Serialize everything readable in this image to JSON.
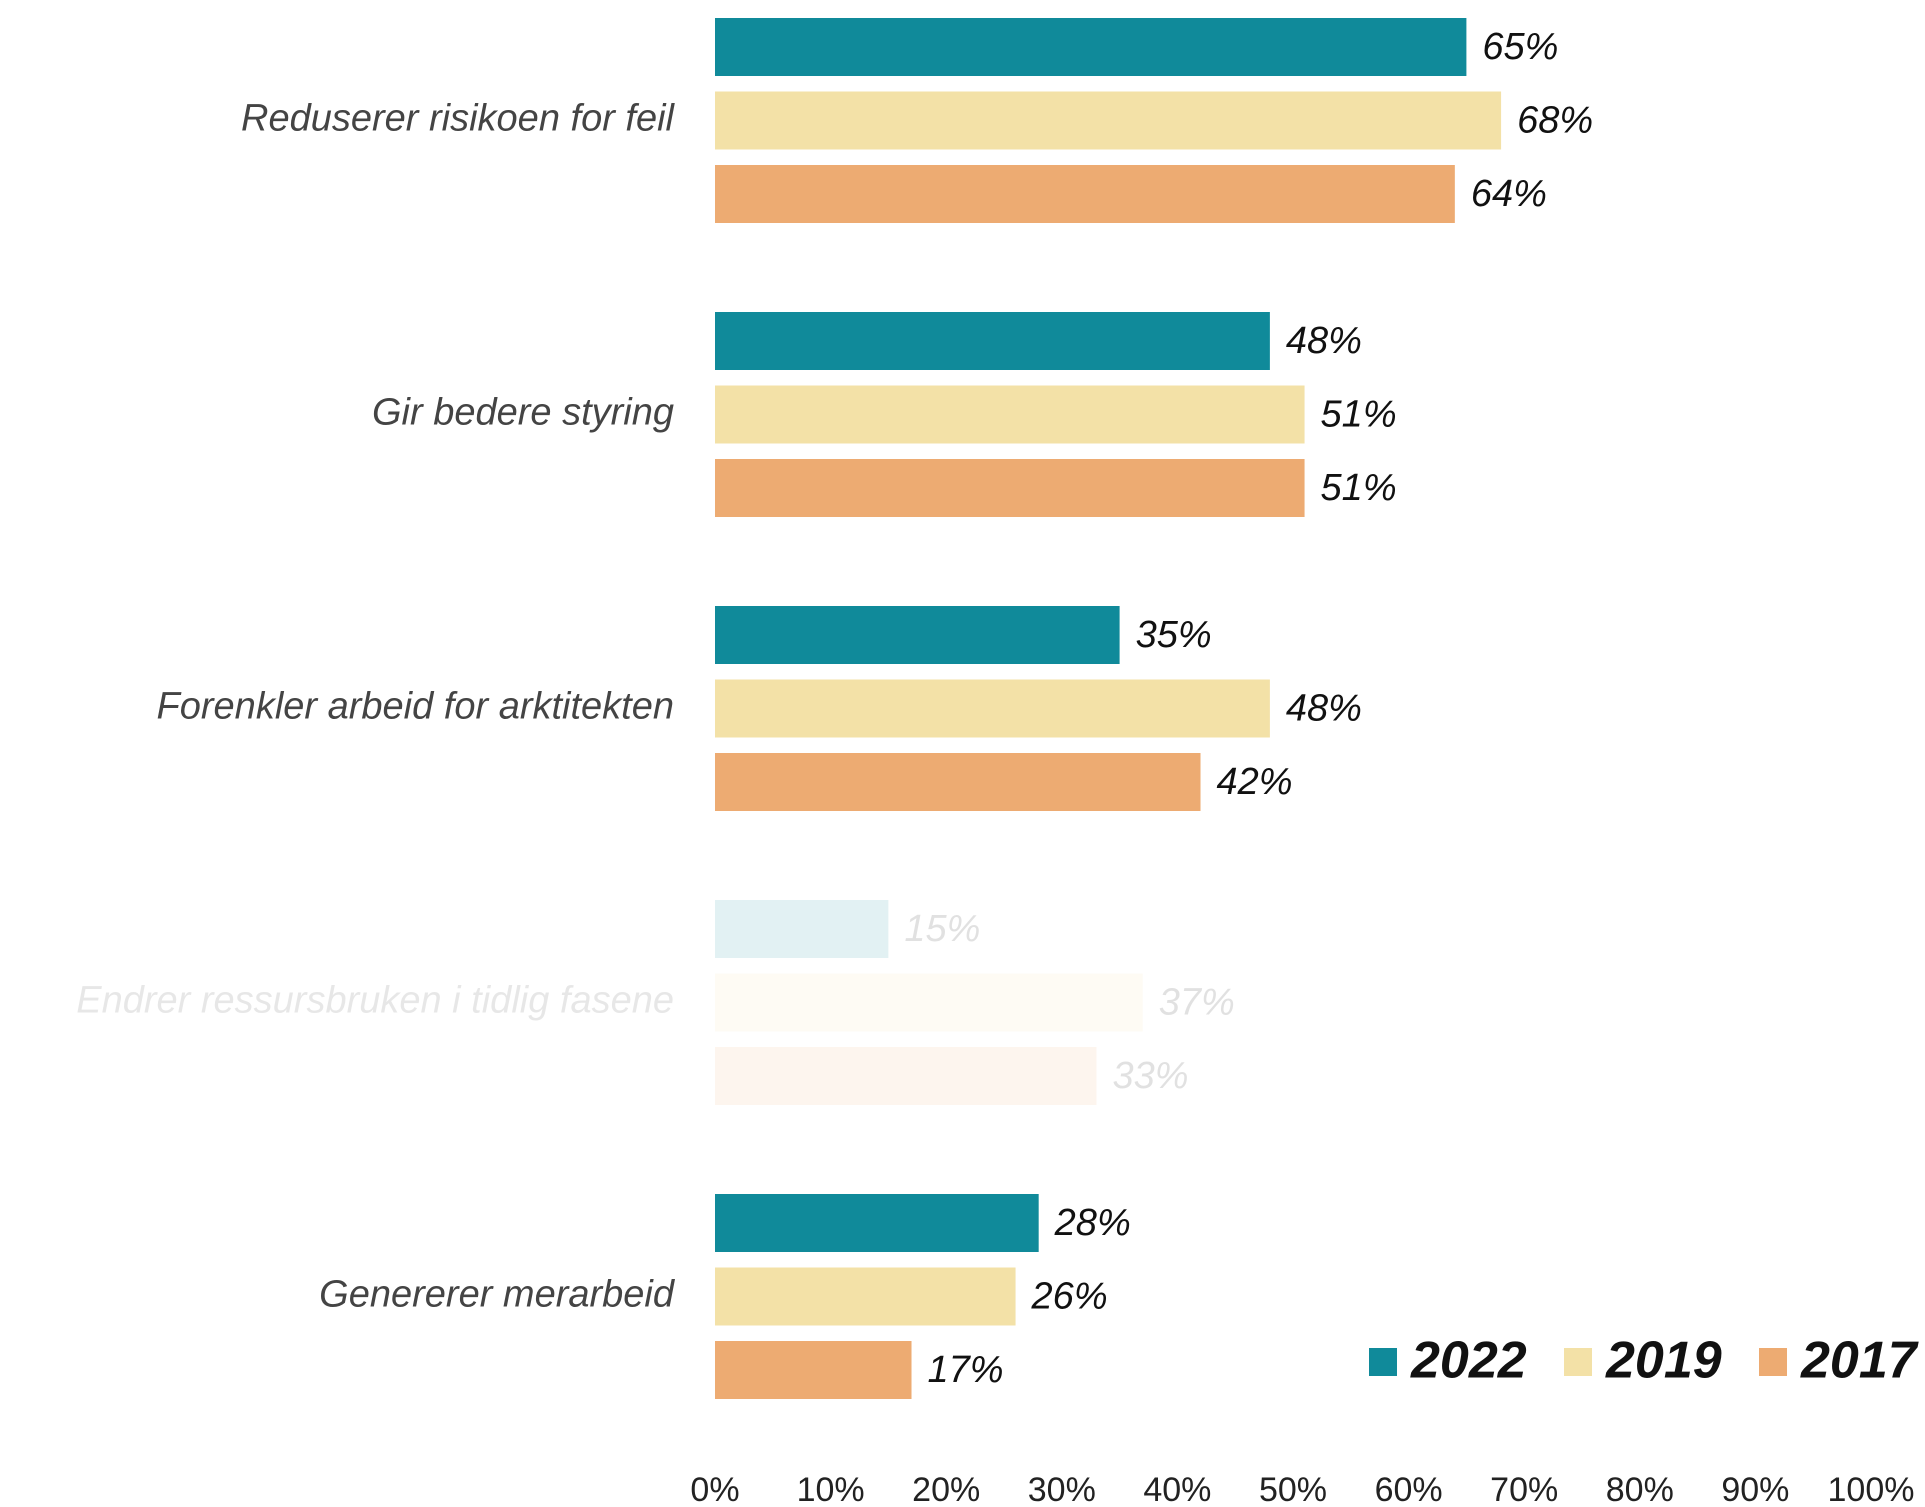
{
  "chart_data": {
    "type": "hbar",
    "categories": [
      "Reduserer risikoen for feil",
      "Gir bedere styring",
      "Forenkler arbeid for arktitekten",
      "Endrer ressursbruken i tidlig fasene",
      "Genererer merarbeid"
    ],
    "dimmed": [
      false,
      false,
      false,
      true,
      false
    ],
    "series": [
      {
        "name": "2022",
        "color": "#108a9a",
        "values": [
          65,
          48,
          35,
          15,
          28
        ],
        "value_labels": [
          "65%",
          "48%",
          "35%",
          "15%",
          "28%"
        ]
      },
      {
        "name": "2019",
        "color": "#f3e1a7",
        "values": [
          68,
          51,
          48,
          37,
          26
        ],
        "value_labels": [
          "68%",
          "51%",
          "48%",
          "37%",
          "26%"
        ]
      },
      {
        "name": "2017",
        "color": "#edab72",
        "values": [
          64,
          51,
          42,
          33,
          17
        ],
        "value_labels": [
          "64%",
          "51%",
          "42%",
          "33%",
          "17%"
        ]
      }
    ],
    "xlim": [
      0,
      100
    ],
    "xticks": [
      {
        "value": 0,
        "label": "0%"
      },
      {
        "value": 10,
        "label": "10%"
      },
      {
        "value": 20,
        "label": "20%"
      },
      {
        "value": 30,
        "label": "30%"
      },
      {
        "value": 40,
        "label": "40%"
      },
      {
        "value": 50,
        "label": "50%"
      },
      {
        "value": 60,
        "label": "60%"
      },
      {
        "value": 70,
        "label": "70%"
      },
      {
        "value": 80,
        "label": "80%"
      },
      {
        "value": 90,
        "label": "90%"
      },
      {
        "value": 100,
        "label": "100%"
      }
    ],
    "legend": "lower right"
  }
}
